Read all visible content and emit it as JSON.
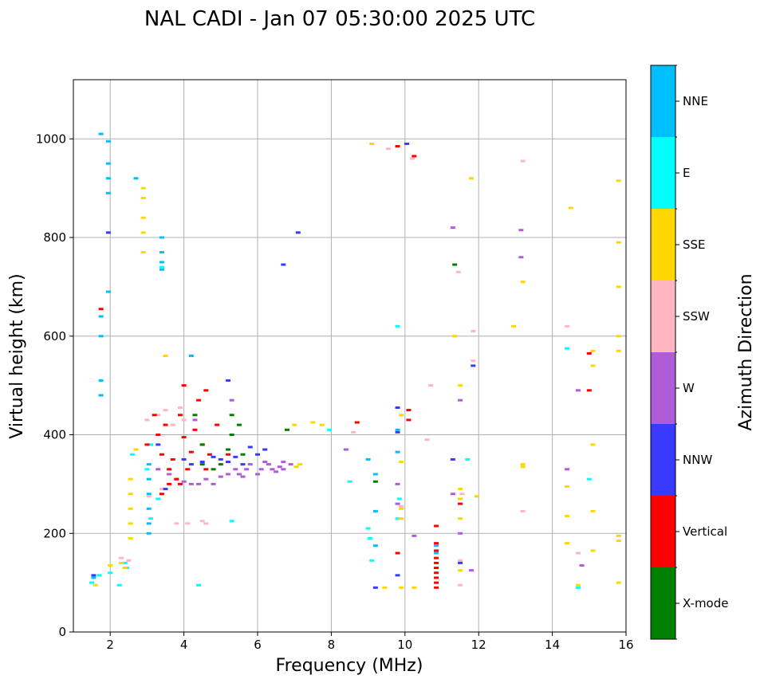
{
  "chart_data": {
    "type": "scatter",
    "title": "NAL CADI - Jan 07 05:30:00 2025 UTC",
    "xlabel": "Frequency (MHz)",
    "ylabel": "Virtual height (km)",
    "xlim": [
      1.0,
      16.0
    ],
    "ylim": [
      0,
      1120
    ],
    "xticks": [
      2,
      4,
      6,
      8,
      10,
      12,
      14,
      16
    ],
    "yticks": [
      0,
      200,
      400,
      600,
      800,
      1000
    ],
    "grid": true,
    "colorbar": {
      "label": "Azimuth Direction",
      "categories": [
        {
          "name": "X-mode",
          "color": "#008000"
        },
        {
          "name": "Vertical",
          "color": "#ff0000"
        },
        {
          "name": "NNW",
          "color": "#3a3aff"
        },
        {
          "name": "W",
          "color": "#b05cd8"
        },
        {
          "name": "SSW",
          "color": "#ffb6c1"
        },
        {
          "name": "SSE",
          "color": "#ffd700"
        },
        {
          "name": "E",
          "color": "#00ffff"
        },
        {
          "name": "NNE",
          "color": "#00bfff"
        }
      ]
    },
    "series": [
      {
        "name": "NNE",
        "points": [
          [
            1.75,
            1010
          ],
          [
            1.95,
            995
          ],
          [
            1.95,
            950
          ],
          [
            1.95,
            920
          ],
          [
            1.95,
            890
          ],
          [
            1.75,
            640
          ],
          [
            1.75,
            600
          ],
          [
            1.75,
            510
          ],
          [
            1.75,
            480
          ],
          [
            1.95,
            690
          ],
          [
            3.05,
            220
          ],
          [
            3.05,
            250
          ],
          [
            3.05,
            280
          ],
          [
            3.05,
            310
          ],
          [
            3.05,
            340
          ],
          [
            3.4,
            800
          ],
          [
            3.4,
            770
          ],
          [
            3.4,
            750
          ],
          [
            3.4,
            735
          ],
          [
            3.05,
            200
          ],
          [
            4.2,
            560
          ],
          [
            9.0,
            350
          ],
          [
            9.2,
            320
          ],
          [
            9.2,
            245
          ],
          [
            9.2,
            175
          ],
          [
            9.8,
            410
          ],
          [
            9.8,
            365
          ],
          [
            10.85,
            175
          ],
          [
            10.85,
            160
          ],
          [
            1.55,
            110
          ],
          [
            2.7,
            920
          ]
        ]
      },
      {
        "name": "E",
        "points": [
          [
            1.5,
            100
          ],
          [
            1.7,
            115
          ],
          [
            2.0,
            120
          ],
          [
            2.25,
            95
          ],
          [
            2.4,
            140
          ],
          [
            2.45,
            130
          ],
          [
            2.6,
            360
          ],
          [
            3.0,
            330
          ],
          [
            3.1,
            380
          ],
          [
            3.4,
            740
          ],
          [
            3.1,
            230
          ],
          [
            3.3,
            270
          ],
          [
            7.95,
            410
          ],
          [
            8.5,
            305
          ],
          [
            9.0,
            210
          ],
          [
            9.05,
            190
          ],
          [
            9.1,
            145
          ],
          [
            9.8,
            620
          ],
          [
            9.8,
            230
          ],
          [
            9.85,
            270
          ],
          [
            11.7,
            350
          ],
          [
            14.4,
            575
          ],
          [
            14.7,
            90
          ],
          [
            15.0,
            310
          ],
          [
            5.3,
            225
          ],
          [
            4.4,
            95
          ]
        ]
      },
      {
        "name": "SSE",
        "points": [
          [
            1.6,
            95
          ],
          [
            2.0,
            135
          ],
          [
            2.3,
            140
          ],
          [
            2.4,
            130
          ],
          [
            2.55,
            310
          ],
          [
            2.55,
            280
          ],
          [
            2.55,
            250
          ],
          [
            2.55,
            220
          ],
          [
            2.55,
            190
          ],
          [
            2.7,
            370
          ],
          [
            2.9,
            900
          ],
          [
            2.9,
            880
          ],
          [
            2.9,
            840
          ],
          [
            2.9,
            810
          ],
          [
            2.9,
            770
          ],
          [
            3.5,
            560
          ],
          [
            7.0,
            420
          ],
          [
            7.5,
            425
          ],
          [
            7.75,
            420
          ],
          [
            7.05,
            335
          ],
          [
            7.15,
            340
          ],
          [
            9.1,
            990
          ],
          [
            9.9,
            440
          ],
          [
            9.9,
            345
          ],
          [
            9.9,
            250
          ],
          [
            9.9,
            230
          ],
          [
            9.9,
            90
          ],
          [
            9.45,
            90
          ],
          [
            10.25,
            90
          ],
          [
            11.35,
            600
          ],
          [
            11.5,
            500
          ],
          [
            11.5,
            290
          ],
          [
            11.5,
            270
          ],
          [
            11.5,
            230
          ],
          [
            11.5,
            125
          ],
          [
            11.8,
            920
          ],
          [
            11.95,
            275
          ],
          [
            12.95,
            620
          ],
          [
            13.2,
            710
          ],
          [
            13.2,
            340
          ],
          [
            13.2,
            335
          ],
          [
            14.5,
            860
          ],
          [
            14.4,
            295
          ],
          [
            14.4,
            235
          ],
          [
            14.4,
            180
          ],
          [
            14.7,
            95
          ],
          [
            15.1,
            570
          ],
          [
            15.1,
            540
          ],
          [
            15.1,
            380
          ],
          [
            15.1,
            245
          ],
          [
            15.1,
            165
          ],
          [
            15.8,
            915
          ],
          [
            15.8,
            790
          ],
          [
            15.8,
            700
          ],
          [
            15.8,
            600
          ],
          [
            15.8,
            570
          ],
          [
            15.8,
            195
          ],
          [
            15.8,
            185
          ],
          [
            15.8,
            100
          ]
        ]
      },
      {
        "name": "SSW",
        "points": [
          [
            2.3,
            150
          ],
          [
            2.5,
            145
          ],
          [
            3.0,
            430
          ],
          [
            3.3,
            440
          ],
          [
            3.5,
            450
          ],
          [
            3.7,
            420
          ],
          [
            3.9,
            455
          ],
          [
            4.0,
            430
          ],
          [
            3.4,
            290
          ],
          [
            3.8,
            220
          ],
          [
            4.1,
            220
          ],
          [
            4.5,
            225
          ],
          [
            4.6,
            220
          ],
          [
            3.05,
            275
          ],
          [
            8.6,
            405
          ],
          [
            9.55,
            980
          ],
          [
            9.9,
            255
          ],
          [
            10.2,
            960
          ],
          [
            10.6,
            390
          ],
          [
            10.7,
            500
          ],
          [
            11.45,
            730
          ],
          [
            11.5,
            145
          ],
          [
            11.5,
            95
          ],
          [
            11.55,
            280
          ],
          [
            11.85,
            610
          ],
          [
            11.85,
            550
          ],
          [
            13.2,
            245
          ],
          [
            13.2,
            955
          ],
          [
            14.4,
            620
          ],
          [
            14.7,
            160
          ],
          [
            9.8,
            985
          ]
        ]
      },
      {
        "name": "W",
        "points": [
          [
            3.3,
            330
          ],
          [
            3.6,
            320
          ],
          [
            3.8,
            310
          ],
          [
            4.0,
            305
          ],
          [
            4.2,
            300
          ],
          [
            4.4,
            300
          ],
          [
            4.6,
            310
          ],
          [
            4.8,
            300
          ],
          [
            5.0,
            315
          ],
          [
            5.2,
            320
          ],
          [
            5.4,
            330
          ],
          [
            5.5,
            320
          ],
          [
            5.6,
            315
          ],
          [
            5.7,
            330
          ],
          [
            5.8,
            340
          ],
          [
            6.0,
            320
          ],
          [
            6.1,
            330
          ],
          [
            6.2,
            345
          ],
          [
            6.3,
            340
          ],
          [
            6.4,
            330
          ],
          [
            6.5,
            325
          ],
          [
            6.6,
            335
          ],
          [
            6.7,
            345
          ],
          [
            6.9,
            340
          ],
          [
            4.3,
            430
          ],
          [
            5.3,
            470
          ],
          [
            6.7,
            330
          ],
          [
            8.4,
            370
          ],
          [
            9.8,
            300
          ],
          [
            9.8,
            260
          ],
          [
            10.25,
            195
          ],
          [
            11.3,
            820
          ],
          [
            11.3,
            280
          ],
          [
            11.5,
            470
          ],
          [
            11.5,
            200
          ],
          [
            11.8,
            125
          ],
          [
            13.15,
            815
          ],
          [
            13.15,
            760
          ],
          [
            14.4,
            330
          ],
          [
            14.7,
            490
          ],
          [
            14.8,
            135
          ]
        ]
      },
      {
        "name": "NNW",
        "points": [
          [
            1.55,
            115
          ],
          [
            1.95,
            810
          ],
          [
            3.3,
            380
          ],
          [
            4.0,
            350
          ],
          [
            4.2,
            340
          ],
          [
            4.5,
            345
          ],
          [
            4.8,
            355
          ],
          [
            5.0,
            350
          ],
          [
            5.2,
            345
          ],
          [
            5.4,
            355
          ],
          [
            5.6,
            340
          ],
          [
            5.8,
            375
          ],
          [
            6.0,
            360
          ],
          [
            6.2,
            370
          ],
          [
            6.7,
            745
          ],
          [
            7.1,
            810
          ],
          [
            5.2,
            510
          ],
          [
            3.5,
            290
          ],
          [
            9.2,
            90
          ],
          [
            9.8,
            455
          ],
          [
            9.8,
            405
          ],
          [
            9.8,
            115
          ],
          [
            10.05,
            990
          ],
          [
            11.3,
            350
          ],
          [
            11.5,
            140
          ],
          [
            11.85,
            540
          ]
        ]
      },
      {
        "name": "Vertical",
        "points": [
          [
            1.75,
            655
          ],
          [
            3.0,
            380
          ],
          [
            3.2,
            440
          ],
          [
            3.3,
            400
          ],
          [
            3.4,
            360
          ],
          [
            3.5,
            420
          ],
          [
            3.6,
            330
          ],
          [
            3.7,
            350
          ],
          [
            3.8,
            310
          ],
          [
            3.9,
            440
          ],
          [
            4.0,
            395
          ],
          [
            4.1,
            330
          ],
          [
            4.2,
            365
          ],
          [
            4.3,
            410
          ],
          [
            4.4,
            470
          ],
          [
            4.5,
            380
          ],
          [
            4.6,
            330
          ],
          [
            4.7,
            360
          ],
          [
            4.9,
            420
          ],
          [
            5.2,
            360
          ],
          [
            3.6,
            300
          ],
          [
            3.9,
            300
          ],
          [
            3.4,
            280
          ],
          [
            4.0,
            500
          ],
          [
            4.6,
            490
          ],
          [
            8.7,
            425
          ],
          [
            9.8,
            985
          ],
          [
            9.8,
            160
          ],
          [
            10.1,
            450
          ],
          [
            10.1,
            430
          ],
          [
            10.25,
            965
          ],
          [
            10.85,
            215
          ],
          [
            10.85,
            180
          ],
          [
            10.85,
            165
          ],
          [
            10.85,
            150
          ],
          [
            10.85,
            140
          ],
          [
            10.85,
            130
          ],
          [
            10.85,
            120
          ],
          [
            10.85,
            110
          ],
          [
            10.85,
            100
          ],
          [
            10.85,
            90
          ],
          [
            11.5,
            260
          ],
          [
            15.0,
            490
          ],
          [
            15.0,
            565
          ]
        ]
      },
      {
        "name": "X-mode",
        "points": [
          [
            4.5,
            380
          ],
          [
            4.8,
            330
          ],
          [
            5.0,
            340
          ],
          [
            5.2,
            370
          ],
          [
            5.3,
            400
          ],
          [
            5.5,
            420
          ],
          [
            5.3,
            440
          ],
          [
            5.6,
            360
          ],
          [
            4.3,
            440
          ],
          [
            4.5,
            340
          ],
          [
            6.8,
            410
          ],
          [
            11.35,
            745
          ],
          [
            9.2,
            305
          ]
        ]
      }
    ]
  }
}
